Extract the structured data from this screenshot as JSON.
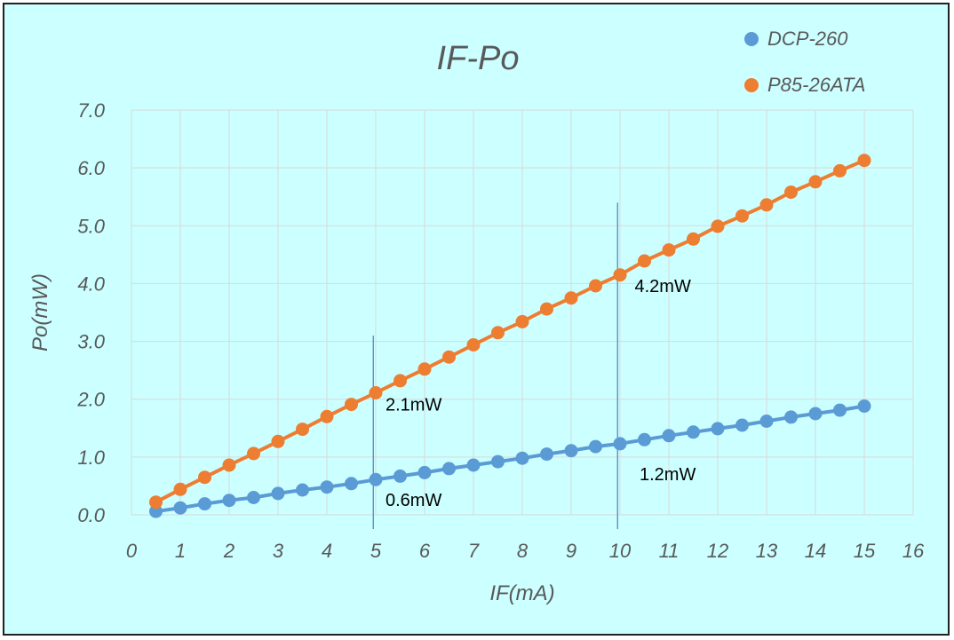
{
  "chart_data": {
    "type": "line",
    "title": "IF-Po",
    "xlabel": "IF(mA)",
    "ylabel": "Po(mW)",
    "xlim": [
      0,
      16
    ],
    "ylim": [
      0,
      7
    ],
    "x_ticks": [
      "0",
      "1",
      "2",
      "3",
      "4",
      "5",
      "6",
      "7",
      "8",
      "9",
      "10",
      "11",
      "12",
      "13",
      "14",
      "15",
      "16"
    ],
    "y_ticks": [
      "0.0",
      "1.0",
      "2.0",
      "3.0",
      "4.0",
      "5.0",
      "6.0",
      "7.0"
    ],
    "grid": true,
    "legend_position": "top-right",
    "x": [
      0.5,
      1,
      1.5,
      2,
      2.5,
      3,
      3.5,
      4,
      4.5,
      5,
      5.5,
      6,
      6.5,
      7,
      7.5,
      8,
      8.5,
      9,
      9.5,
      10,
      10.5,
      11,
      11.5,
      12,
      12.5,
      13,
      13.5,
      14,
      14.5,
      15
    ],
    "series": [
      {
        "name": "DCP-260",
        "color": "#5b9bd5",
        "values": [
          0.06,
          0.12,
          0.19,
          0.25,
          0.3,
          0.37,
          0.43,
          0.48,
          0.54,
          0.61,
          0.67,
          0.73,
          0.8,
          0.86,
          0.92,
          0.98,
          1.05,
          1.11,
          1.18,
          1.23,
          1.3,
          1.37,
          1.43,
          1.49,
          1.55,
          1.62,
          1.69,
          1.75,
          1.81,
          1.88
        ]
      },
      {
        "name": "P85-26ATA",
        "color": "#ed7d31",
        "values": [
          0.22,
          0.44,
          0.65,
          0.86,
          1.06,
          1.27,
          1.48,
          1.7,
          1.91,
          2.11,
          2.32,
          2.52,
          2.73,
          2.94,
          3.15,
          3.34,
          3.56,
          3.75,
          3.96,
          4.15,
          4.39,
          4.58,
          4.77,
          4.99,
          5.17,
          5.36,
          5.58,
          5.76,
          5.95,
          6.13
        ]
      }
    ],
    "reference_lines": [
      {
        "x": 4.95,
        "y_top": 3.1
      },
      {
        "x": 9.95,
        "y_top": 5.4
      }
    ],
    "annotations": [
      {
        "text": "2.1mW",
        "x": 5.2,
        "y": 1.8
      },
      {
        "text": "0.6mW",
        "x": 5.2,
        "y": 0.15
      },
      {
        "text": "4.2mW",
        "x": 10.3,
        "y": 3.85
      },
      {
        "text": "1.2mW",
        "x": 10.4,
        "y": 0.6
      }
    ]
  }
}
